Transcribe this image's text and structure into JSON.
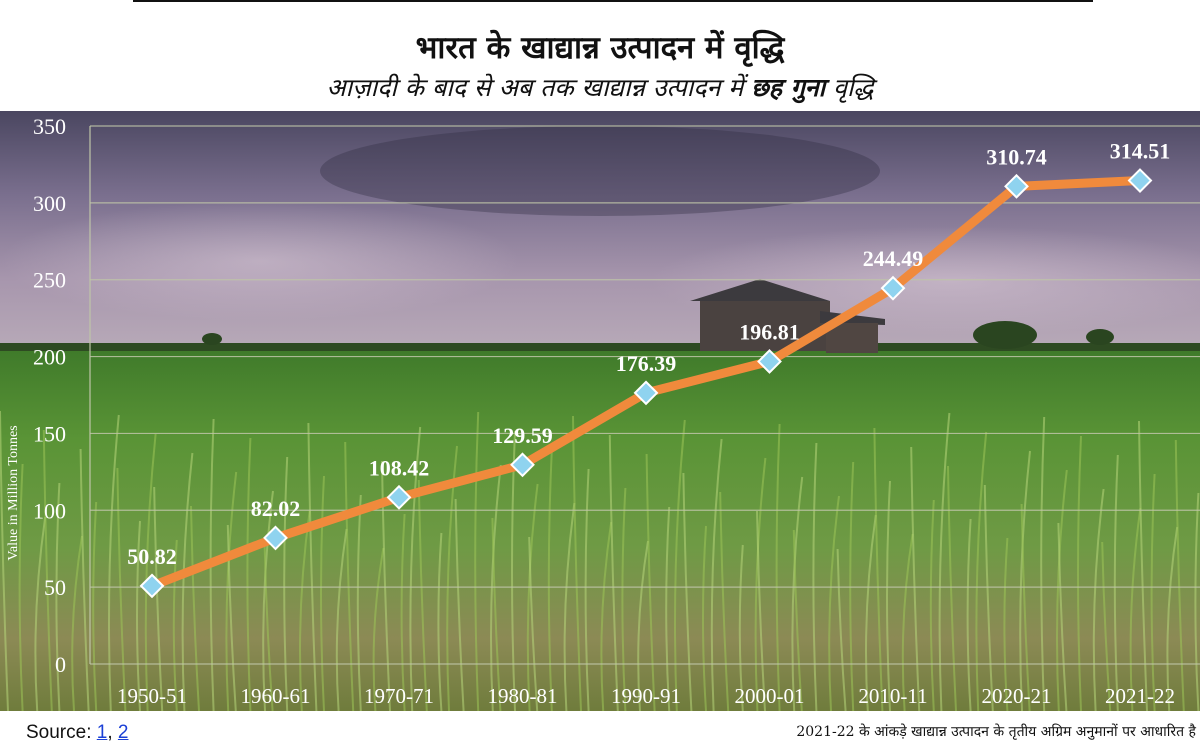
{
  "header": {
    "title": "भारत के खाद्यान्न उत्पादन में वृद्धि",
    "subtitle_pre": "आज़ादी के बाद से अब तक खाद्यान्न उत्पादन में ",
    "subtitle_bold": "छह गुना",
    "subtitle_post": " वृद्धि"
  },
  "footer": {
    "source_label": "Source: ",
    "source_link_1": "1",
    "source_sep": ", ",
    "source_link_2": "2",
    "note": "2021-22 के आंकड़े खाद्यान्न उत्पादन के तृतीय अग्रिम अनुमानों पर आधारित है"
  },
  "chart_data": {
    "type": "line",
    "title": "",
    "xlabel": "",
    "ylabel": "Value in Million Tonnes",
    "categories": [
      "1950-51",
      "1960-61",
      "1970-71",
      "1980-81",
      "1990-91",
      "2000-01",
      "2010-11",
      "2020-21",
      "2021-22"
    ],
    "series": [
      {
        "values": [
          50.82,
          82.02,
          108.42,
          129.59,
          176.39,
          196.81,
          244.49,
          310.74,
          314.51
        ]
      }
    ],
    "data_labels": [
      "50.82",
      "82.02",
      "108.42",
      "129.59",
      "176.39",
      "196.81",
      "244.49",
      "310.74",
      "314.51"
    ],
    "ylim": [
      0,
      350
    ],
    "yticks": [
      0,
      50,
      100,
      150,
      200,
      250,
      300,
      350
    ],
    "grid": true,
    "legend": "none",
    "colors": {
      "line": "#f08a3c",
      "marker": "#8fd3ef",
      "marker_stroke": "#ffffff",
      "grid": "#bfc5a8"
    }
  }
}
